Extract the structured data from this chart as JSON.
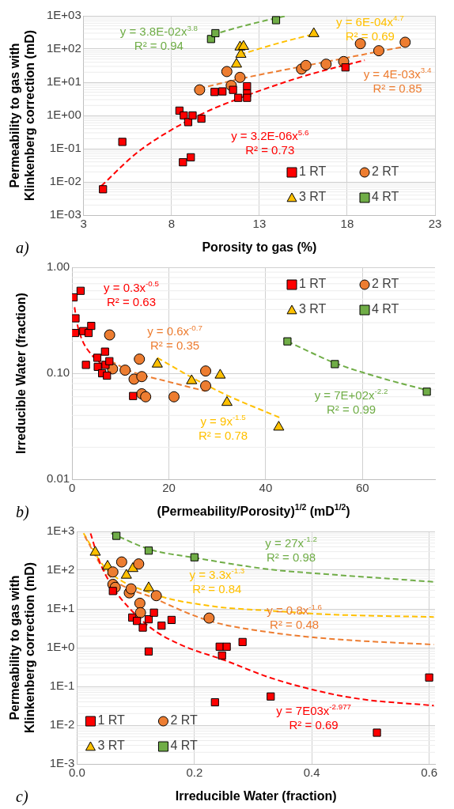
{
  "chart_data": [
    {
      "type": "scatter",
      "xlabel": "Porosity to gas (%)",
      "ylabel": "Permeability to gas with Klinkenberg correction (mD)",
      "xlim": [
        3,
        23
      ],
      "xticks": [
        3,
        8,
        13,
        18,
        23
      ],
      "ylim": [
        0.001,
        1000
      ],
      "yticks": [
        {
          "value": 0.001,
          "label": "1E-03"
        },
        {
          "value": 0.01,
          "label": "1E-02"
        },
        {
          "value": 0.1,
          "label": "1E-01"
        },
        {
          "value": 1,
          "label": "1E+00"
        },
        {
          "value": 10,
          "label": "1E+01"
        },
        {
          "value": 100,
          "label": "1E+02"
        },
        {
          "value": 1000,
          "label": "1E+03"
        }
      ],
      "log": "y",
      "grid": true,
      "legend": "bottom right",
      "series": [
        {
          "name": "1 RT",
          "type": "scatter",
          "marker": "square",
          "color": "#ff0000",
          "x": [
            4.1,
            5.2,
            8.45,
            8.7,
            8.95,
            9.2,
            9.7,
            8.65,
            9.1,
            10.45,
            10.9,
            11.5,
            11.8,
            12.3,
            12.3,
            12.3,
            17.9
          ],
          "values": [
            0.006,
            0.16,
            1.4,
            1.0,
            0.63,
            1.0,
            0.8,
            0.039,
            0.055,
            5.1,
            5.3,
            5.9,
            3.4,
            7.6,
            4.6,
            3.4,
            28
          ]
        },
        {
          "name": "2 RT",
          "type": "scatter",
          "marker": "circle",
          "color": "#ed7d31",
          "x": [
            9.6,
            11.15,
            11.4,
            11.9,
            15.4,
            15.65,
            16.8,
            17.8,
            18.75,
            19.8,
            21.3
          ],
          "values": [
            5.9,
            21,
            8,
            14,
            25,
            32,
            35,
            42,
            145,
            89,
            160
          ]
        },
        {
          "name": "3 RT",
          "type": "scatter",
          "marker": "triangle",
          "color": "#ffc000",
          "x": [
            11.7,
            11.95,
            11.9,
            12.1,
            16.1
          ],
          "values": [
            35,
            69,
            115,
            120,
            290
          ]
        },
        {
          "name": "4 RT",
          "type": "scatter",
          "marker": "square",
          "color": "#70ad47",
          "x": [
            10.25,
            10.5,
            13.95
          ],
          "values": [
            200,
            300,
            740
          ]
        },
        {
          "type": "line",
          "marker": "none",
          "line_style": "dashed",
          "color": "#ff0000",
          "x": [
            4,
            6,
            8,
            10,
            12,
            14,
            16,
            19
          ],
          "values": [
            0.0075,
            0.073,
            0.37,
            1.3,
            3.5,
            8.4,
            18,
            46
          ]
        },
        {
          "type": "line",
          "marker": "none",
          "line_style": "dashed",
          "color": "#ed7d31",
          "x": [
            9.6,
            12,
            15,
            18,
            21.3
          ],
          "values": [
            6.5,
            13,
            27,
            55,
            120
          ]
        },
        {
          "type": "line",
          "marker": "none",
          "line_style": "dashed",
          "color": "#ffc000",
          "x": [
            11.9,
            14,
            16
          ],
          "values": [
            68,
            146,
            274
          ]
        },
        {
          "type": "line",
          "marker": "none",
          "line_style": "dashed",
          "color": "#70ad47",
          "x": [
            10.3,
            12,
            13.2,
            14.5
          ],
          "values": [
            268,
            480,
            690,
            985
          ]
        }
      ],
      "annotations": [
        "y = 3.2E-06x$^{5.6}$\nR² = 0.73",
        "y = 4E-03x$^{3.4}$\nR² = 0.85",
        "y = 6E-04x$^{4.7}$\nR² = 0.69",
        "y = 3.8E-02x$^{3.8}$\nR² = 0.94",
        "a)"
      ]
    },
    {
      "type": "scatter",
      "xlabel": "(Permeability/Porosity)$^{1/2}$ (mD$^{1/2}$)",
      "ylabel": "Irreducible Water (fraction)",
      "xlim": [
        0,
        75
      ],
      "xticks": [
        0,
        20,
        40,
        60
      ],
      "ylim": [
        0.01,
        1
      ],
      "yticks": [
        {
          "value": 0.01,
          "label": "0.01"
        },
        {
          "value": 0.1,
          "label": "0.10"
        },
        {
          "value": 1,
          "label": "1.00"
        }
      ],
      "log": "y",
      "grid": true,
      "legend": "top right",
      "series": [
        {
          "name": "1 RT",
          "type": "scatter",
          "marker": "square",
          "color": "#ff0000",
          "x": [
            0.3,
            1.75,
            0.7,
            0.6,
            2.3,
            3.4,
            3.95,
            2.85,
            5.2,
            5.3,
            6.2,
            6.8,
            6.9,
            7.7,
            7.2,
            12.6
          ],
          "values": [
            0.52,
            0.6,
            0.33,
            0.24,
            0.25,
            0.24,
            0.28,
            0.12,
            0.14,
            0.115,
            0.1,
            0.16,
            0.12,
            0.13,
            0.095,
            0.061
          ]
        },
        {
          "name": "2 RT",
          "type": "scatter",
          "marker": "circle",
          "color": "#ed7d31",
          "x": [
            7.75,
            8.35,
            10.95,
            12.8,
            13.9,
            14.4,
            14.4,
            15.2,
            21.05,
            27.6,
            27.6
          ],
          "values": [
            0.23,
            0.11,
            0.107,
            0.088,
            0.136,
            0.093,
            0.064,
            0.06,
            0.06,
            0.105,
            0.076
          ]
        },
        {
          "name": "3 RT",
          "type": "scatter",
          "marker": "triangle",
          "color": "#ffc000",
          "x": [
            17.6,
            24.7,
            30.6,
            32,
            42.7
          ],
          "values": [
            0.122,
            0.085,
            0.096,
            0.053,
            0.031
          ]
        },
        {
          "name": "4 RT",
          "type": "scatter",
          "marker": "square",
          "color": "#70ad47",
          "x": [
            44.5,
            54.3,
            73.3
          ],
          "values": [
            0.2,
            0.122,
            0.067
          ]
        },
        {
          "type": "line",
          "marker": "none",
          "line_style": "dashed",
          "color": "#ff0000",
          "x": [
            0.5,
            1,
            2,
            4,
            8
          ],
          "values": [
            0.42,
            0.3,
            0.21,
            0.15,
            0.106
          ]
        },
        {
          "type": "line",
          "marker": "none",
          "line_style": "dashed",
          "color": "#ed7d31",
          "x": [
            8,
            12,
            20,
            27.5
          ],
          "values": [
            0.13,
            0.105,
            0.083,
            0.068
          ]
        },
        {
          "type": "line",
          "marker": "none",
          "line_style": "dashed",
          "color": "#ffc000",
          "x": [
            17.6,
            25,
            32,
            43
          ],
          "values": [
            0.14,
            0.09,
            0.062,
            0.038
          ]
        },
        {
          "type": "line",
          "marker": "none",
          "line_style": "dashed",
          "color": "#70ad47",
          "x": [
            44.5,
            54.3,
            64,
            74
          ],
          "values": [
            0.2,
            0.125,
            0.09,
            0.068
          ]
        }
      ],
      "annotations": [
        "y = 0.3x$^{-0.5}$\nR² = 0.63",
        "y = 0.6x$^{-0.7}$\nR² = 0.35",
        "y = 9x$^{-1.5}$\nR² = 0.78",
        "y = 7E+02x$^{-2.2}$\nR² = 0.99",
        "b)"
      ]
    },
    {
      "type": "scatter",
      "xlabel": "Irreducible Water (fraction)",
      "ylabel": "Permeability to gas with Klinkenberg correction (mD)",
      "xlim": [
        0,
        0.61
      ],
      "xticks": [
        {
          "value": 0,
          "label": "0.0"
        },
        {
          "value": 0.2,
          "label": "0.2"
        },
        {
          "value": 0.4,
          "label": "0.4"
        },
        {
          "value": 0.6,
          "label": "0.6"
        }
      ],
      "ylim": [
        0.001,
        1000
      ],
      "yticks": [
        {
          "value": 0.001,
          "label": "1E-3"
        },
        {
          "value": 0.01,
          "label": "1E-2"
        },
        {
          "value": 0.1,
          "label": "1E-1"
        },
        {
          "value": 1,
          "label": "1E+0"
        },
        {
          "value": 10,
          "label": "1E+1"
        },
        {
          "value": 100,
          "label": "1E+2"
        },
        {
          "value": 1000,
          "label": "1E+3"
        }
      ],
      "log": "y",
      "grid": true,
      "legend": "bottom left",
      "series": [
        {
          "name": "1 RT",
          "type": "scatter",
          "marker": "square",
          "color": "#ff0000",
          "x": [
            0.061,
            0.094,
            0.102,
            0.112,
            0.122,
            0.131,
            0.144,
            0.161,
            0.122,
            0.243,
            0.255,
            0.247,
            0.282,
            0.235,
            0.33,
            0.511,
            0.6
          ],
          "values": [
            29,
            6,
            4.9,
            3.3,
            5.4,
            8,
            3.7,
            5.2,
            0.8,
            1.06,
            1.06,
            0.63,
            1.4,
            0.039,
            0.055,
            0.0064,
            0.17
          ]
        },
        {
          "name": "2 RT",
          "type": "scatter",
          "marker": "circle",
          "color": "#ed7d31",
          "x": [
            0.061,
            0.076,
            0.105,
            0.061,
            0.065,
            0.089,
            0.092,
            0.107,
            0.108,
            0.135,
            0.225
          ],
          "values": [
            90,
            163,
            145,
            43,
            36,
            26,
            33,
            14,
            8,
            22,
            5.8
          ]
        },
        {
          "name": "3 RT",
          "type": "scatter",
          "marker": "triangle",
          "color": "#ffc000",
          "x": [
            0.031,
            0.052,
            0.084,
            0.095,
            0.122
          ],
          "values": [
            290,
            126,
            74,
            110,
            35
          ]
        },
        {
          "name": "4 RT",
          "type": "scatter",
          "marker": "square",
          "color": "#70ad47",
          "x": [
            0.067,
            0.122,
            0.2
          ],
          "values": [
            770,
            320,
            215
          ]
        },
        {
          "type": "line",
          "marker": "none",
          "line_style": "dashed",
          "color": "#ff0000",
          "x": [
            0.023,
            0.038,
            0.06,
            0.074,
            0.125,
            0.176,
            0.252,
            0.328,
            0.405,
            0.48,
            0.608
          ],
          "values": [
            890,
            170,
            38,
            19,
            3.3,
            1.2,
            0.47,
            0.17,
            0.08,
            0.048,
            0.032
          ]
        },
        {
          "type": "line",
          "marker": "none",
          "line_style": "dashed",
          "color": "#ed7d31",
          "x": [
            0.013,
            0.05,
            0.135,
            0.226,
            0.328,
            0.43,
            0.608
          ],
          "values": [
            750,
            86,
            18,
            4.9,
            2.5,
            1.7,
            1.2
          ]
        },
        {
          "type": "line",
          "marker": "none",
          "line_style": "dashed",
          "color": "#ffc000",
          "x": [
            0.011,
            0.048,
            0.125,
            0.226,
            0.328,
            0.43,
            0.608
          ],
          "values": [
            900,
            115,
            26,
            12,
            9,
            7.2,
            6.2
          ]
        },
        {
          "type": "line",
          "marker": "none",
          "line_style": "dashed",
          "color": "#70ad47",
          "x": [
            0.058,
            0.125,
            0.2,
            0.328,
            0.43,
            0.608
          ],
          "values": [
            900,
            340,
            210,
            105,
            78,
            50
          ]
        }
      ],
      "annotations": [
        "y = 7E03x$^{-2.977}$\nR² = 0.69",
        "y = 0.8x$^{-1.6}$\nR² = 0.48",
        "y = 3.3x$^{-1.3}$\nR² = 0.84",
        "y = 27x$^{-1.2}$\nR² = 0.98",
        "c)"
      ]
    }
  ]
}
